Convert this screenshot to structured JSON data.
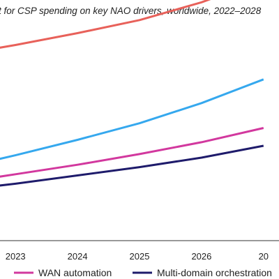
{
  "chart_data": {
    "type": "line",
    "title": "t for CSP spending on key NAO drivers, worldwide, 2022–2028",
    "x": [
      2022,
      2023,
      2024,
      2025,
      2026,
      2027
    ],
    "x_tick_labels": [
      "2023",
      "2024",
      "2025",
      "2026",
      "20"
    ],
    "xlim": [
      2022.75,
      2027.25
    ],
    "ylim": [
      0,
      100
    ],
    "grid": false,
    "legend_position": "bottom",
    "series": [
      {
        "values": [
          78,
          82.5,
          87.5,
          93,
          100.5,
          110
        ],
        "color": "#e8615a"
      },
      {
        "values": [
          30,
          36,
          42.5,
          49.5,
          58,
          68
        ],
        "color": "#35a8ee"
      },
      {
        "name": "WAN automation",
        "values": [
          24,
          28,
          32,
          36.5,
          41.5,
          47.5
        ],
        "color": "#d2389e"
      },
      {
        "name": "Multi-domain orchestration",
        "values": [
          21,
          24,
          27.5,
          31,
          35,
          40
        ],
        "color": "#1e1b6b"
      }
    ]
  }
}
